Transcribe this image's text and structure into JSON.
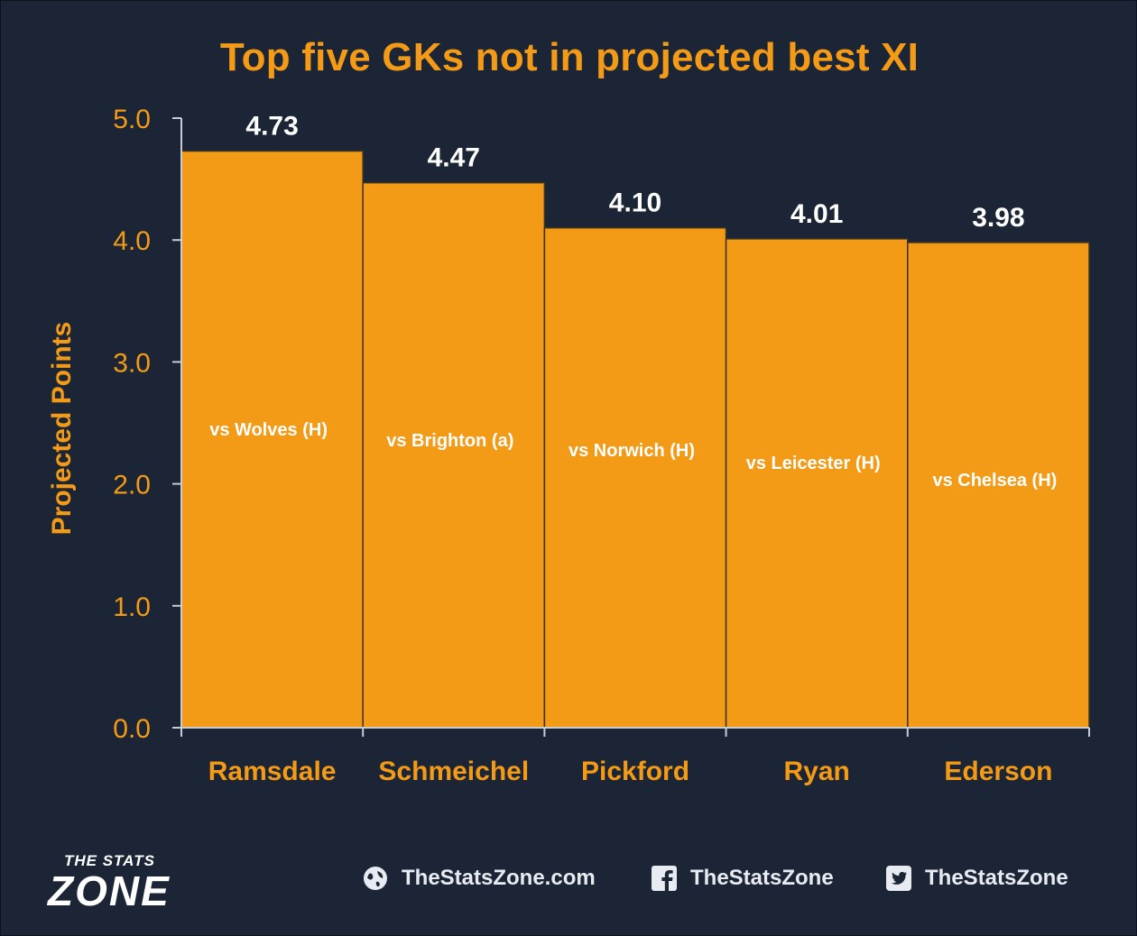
{
  "chart_data": {
    "type": "bar",
    "title": "Top five GKs not in projected best XI",
    "ylabel": "Projected Points",
    "xlabel": "",
    "ylim": [
      0,
      5
    ],
    "yticks": [
      "0.0",
      "1.0",
      "2.0",
      "3.0",
      "4.0",
      "5.0"
    ],
    "categories": [
      "Ramsdale",
      "Schmeichel",
      "Pickford",
      "Ryan",
      "Ederson"
    ],
    "values": [
      4.73,
      4.47,
      4.1,
      4.01,
      3.98
    ],
    "value_labels": [
      "4.73",
      "4.47",
      "4.10",
      "4.01",
      "3.98"
    ],
    "annotations": [
      "vs Wolves (H)",
      "vs Brighton (a)",
      "vs Norwich (H)",
      "vs Leicester (H)",
      "vs Chelsea (H)"
    ],
    "grid": false,
    "legend": "none"
  },
  "colors": {
    "background": "#1b2536",
    "bar": "#f39a16",
    "bar_edge": "#3a3320",
    "axis": "#c9ccd2",
    "accent_text": "#f39a16",
    "value_text": "#ffffff"
  },
  "branding": {
    "logo_top": "THE STATS",
    "logo_main": "ZONE",
    "website": "TheStatsZone.com",
    "facebook": "TheStatsZone",
    "twitter": "TheStatsZone"
  }
}
